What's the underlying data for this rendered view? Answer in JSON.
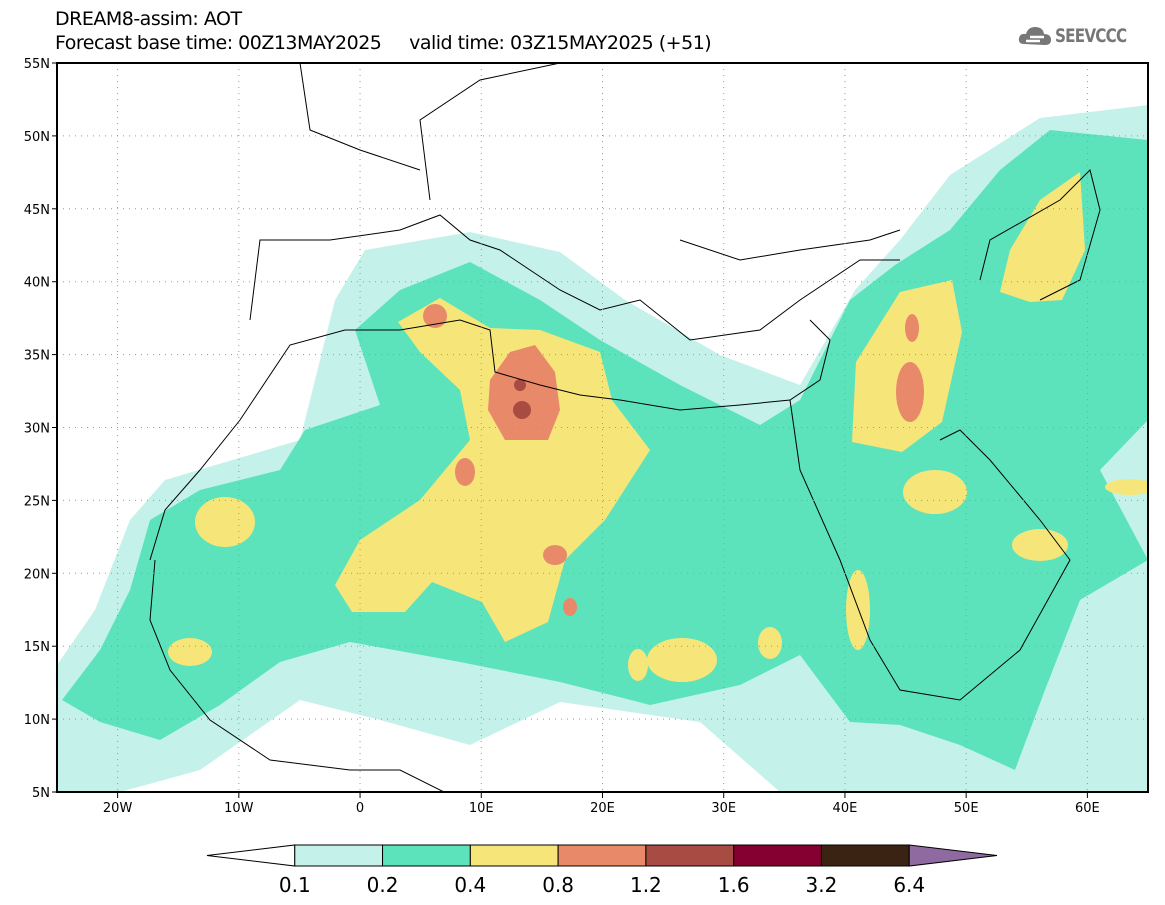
{
  "header": {
    "title": "DREAM8-assim: AOT",
    "subtitle": "Forecast base time: 00Z13MAY2025     valid time: 03Z15MAY2025 (+51)",
    "logo_text": "SEEVCCC"
  },
  "map": {
    "lon_range": [
      -25,
      65
    ],
    "lat_range": [
      5,
      55
    ],
    "lon_labels": [
      "20W",
      "10W",
      "0",
      "10E",
      "20E",
      "30E",
      "40E",
      "50E",
      "60E"
    ],
    "lat_labels": [
      "55N",
      "50N",
      "45N",
      "40N",
      "35N",
      "30N",
      "25N",
      "20N",
      "15N",
      "10N",
      "5N"
    ]
  },
  "colorbar": {
    "labels": [
      "0.1",
      "0.2",
      "0.4",
      "0.8",
      "1.2",
      "1.6",
      "3.2",
      "6.4"
    ],
    "colors": [
      "#ffffff",
      "#c4f2ea",
      "#5de3bb",
      "#f6e67a",
      "#e8896a",
      "#a84b42",
      "#850030",
      "#3b2313",
      "#8f6aa0"
    ]
  }
}
